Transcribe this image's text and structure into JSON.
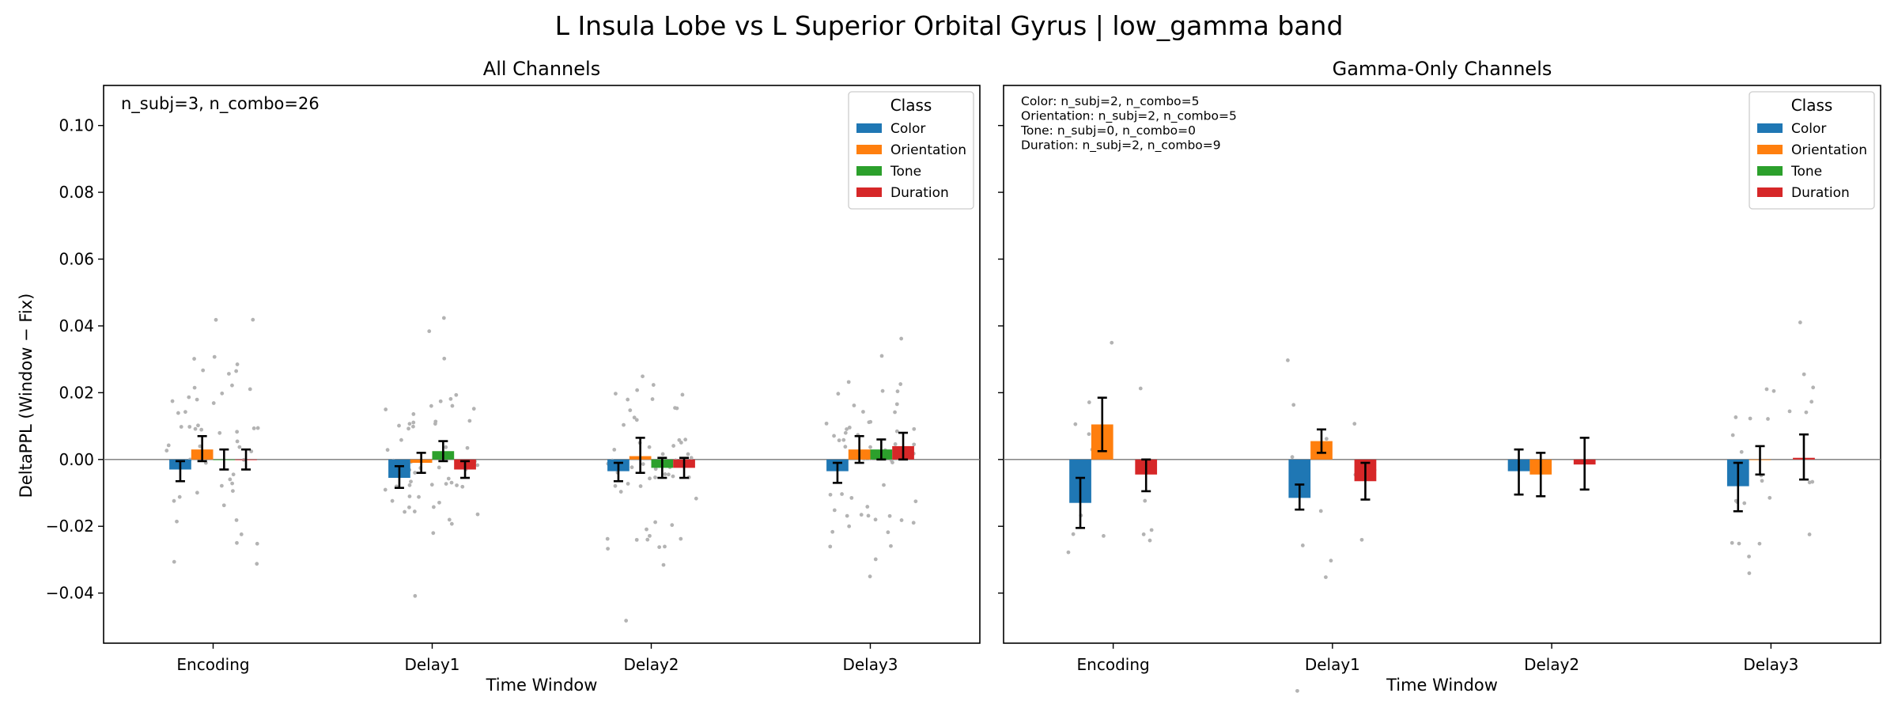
{
  "suptitle": "L Insula Lobe vs L Superior Orbital Gyrus  |  low_gamma band",
  "ylabel": "DeltaPPL (Window − Fix)",
  "colors": {
    "Color": "#1f77b4",
    "Orientation": "#ff7f0e",
    "Tone": "#2ca02c",
    "Duration": "#d62728"
  },
  "legend_title": "Class",
  "y_ticks": [
    -0.04,
    -0.02,
    0.0,
    0.02,
    0.04,
    0.06,
    0.08,
    0.1
  ],
  "y_tick_labels": [
    "−0.04",
    "−0.02",
    "0.00",
    "0.02",
    "0.04",
    "0.06",
    "0.08",
    "0.10"
  ],
  "panels": [
    {
      "title": "All Channels",
      "xlabel": "Time Window",
      "annotation": [
        "n_subj=3, n_combo=26"
      ]
    },
    {
      "title": "Gamma-Only Channels",
      "xlabel": "Time Window",
      "annotation": [
        "Color: n_subj=2, n_combo=5",
        "Orientation: n_subj=2, n_combo=5",
        "Tone: n_subj=0, n_combo=0",
        "Duration: n_subj=2, n_combo=9"
      ]
    }
  ],
  "chart_data": [
    {
      "type": "bar",
      "title": "All Channels",
      "xlabel": "Time Window",
      "ylabel": "DeltaPPL (Window − Fix)",
      "categories": [
        "Encoding",
        "Delay1",
        "Delay2",
        "Delay3"
      ],
      "ylim": [
        -0.055,
        0.112
      ],
      "grid": false,
      "legend": {
        "title": "Class",
        "location": "upper right"
      },
      "series": [
        {
          "name": "Color",
          "values": [
            -0.003,
            -0.0055,
            -0.0035,
            -0.0035
          ],
          "err_low": [
            -0.0065,
            -0.0085,
            -0.0065,
            -0.007
          ],
          "err_high": [
            -0.0005,
            -0.002,
            -0.001,
            -0.001
          ]
        },
        {
          "name": "Orientation",
          "values": [
            0.003,
            -0.001,
            0.001,
            0.003
          ],
          "err_low": [
            -0.0005,
            -0.004,
            -0.004,
            -0.001
          ],
          "err_high": [
            0.007,
            0.002,
            0.0065,
            0.007
          ]
        },
        {
          "name": "Tone",
          "values": [
            0.0,
            0.0025,
            -0.0025,
            0.003
          ],
          "err_low": [
            -0.003,
            -0.0005,
            -0.0055,
            0.0
          ],
          "err_high": [
            0.003,
            0.0055,
            0.0005,
            0.006
          ]
        },
        {
          "name": "Duration",
          "values": [
            0.0,
            -0.003,
            -0.0025,
            0.004
          ],
          "err_low": [
            -0.003,
            -0.0055,
            -0.0055,
            0.0
          ],
          "err_high": [
            0.003,
            -0.0005,
            0.0005,
            0.008
          ]
        }
      ]
    },
    {
      "type": "bar",
      "title": "Gamma-Only Channels",
      "xlabel": "Time Window",
      "categories": [
        "Encoding",
        "Delay1",
        "Delay2",
        "Delay3"
      ],
      "ylim": [
        -0.055,
        0.112
      ],
      "grid": false,
      "legend": {
        "title": "Class",
        "location": "upper right"
      },
      "series": [
        {
          "name": "Color",
          "values": [
            -0.013,
            -0.0115,
            -0.0035,
            -0.008
          ],
          "err_low": [
            -0.0205,
            -0.015,
            -0.0105,
            -0.0155
          ],
          "err_high": [
            -0.0055,
            -0.0075,
            0.003,
            -0.001
          ]
        },
        {
          "name": "Orientation",
          "values": [
            0.0105,
            0.0055,
            -0.0045,
            0.0
          ],
          "err_low": [
            0.0025,
            0.002,
            -0.011,
            -0.0045
          ],
          "err_high": [
            0.0185,
            0.009,
            0.002,
            0.004
          ]
        },
        {
          "name": "Tone",
          "values": [
            null,
            null,
            null,
            null
          ],
          "err_low": [
            null,
            null,
            null,
            null
          ],
          "err_high": [
            null,
            null,
            null,
            null
          ]
        },
        {
          "name": "Duration",
          "values": [
            -0.0045,
            -0.0065,
            -0.0015,
            0.0005
          ],
          "err_low": [
            -0.0095,
            -0.012,
            -0.009,
            -0.006
          ],
          "err_high": [
            0.0,
            -0.001,
            0.0065,
            0.0075
          ]
        }
      ]
    }
  ]
}
